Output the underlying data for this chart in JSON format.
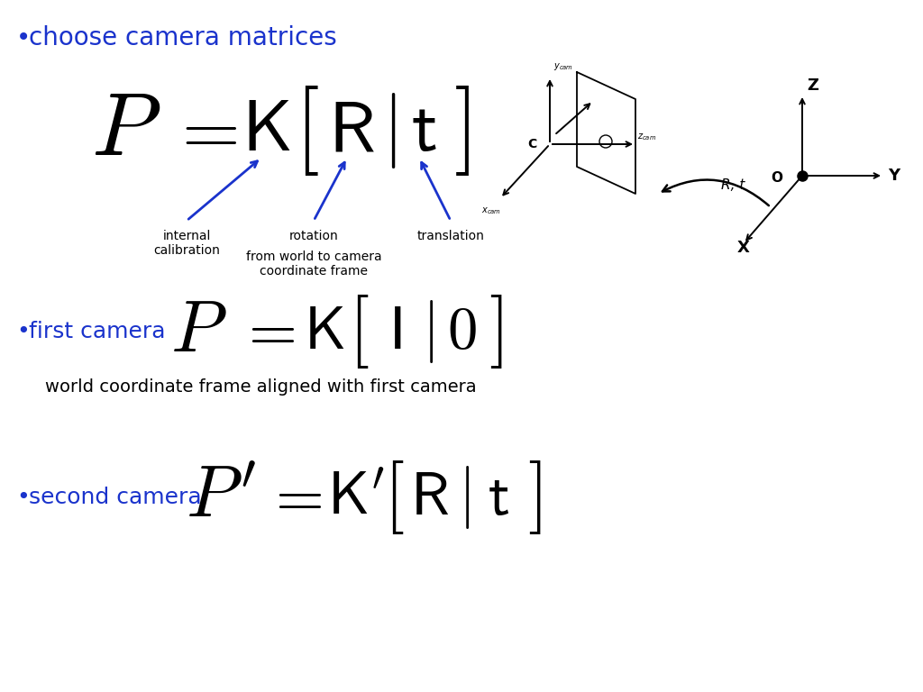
{
  "bg_color": "#ffffff",
  "title_bullet": "choose camera matrices",
  "title_bullet_color": "#1a33cc",
  "first_camera_label": "first camera",
  "first_camera_color": "#1a33cc",
  "second_camera_label": "second camera",
  "second_camera_color": "#1a33cc",
  "text_color": "#000000",
  "arrow_color": "#1a33cc"
}
